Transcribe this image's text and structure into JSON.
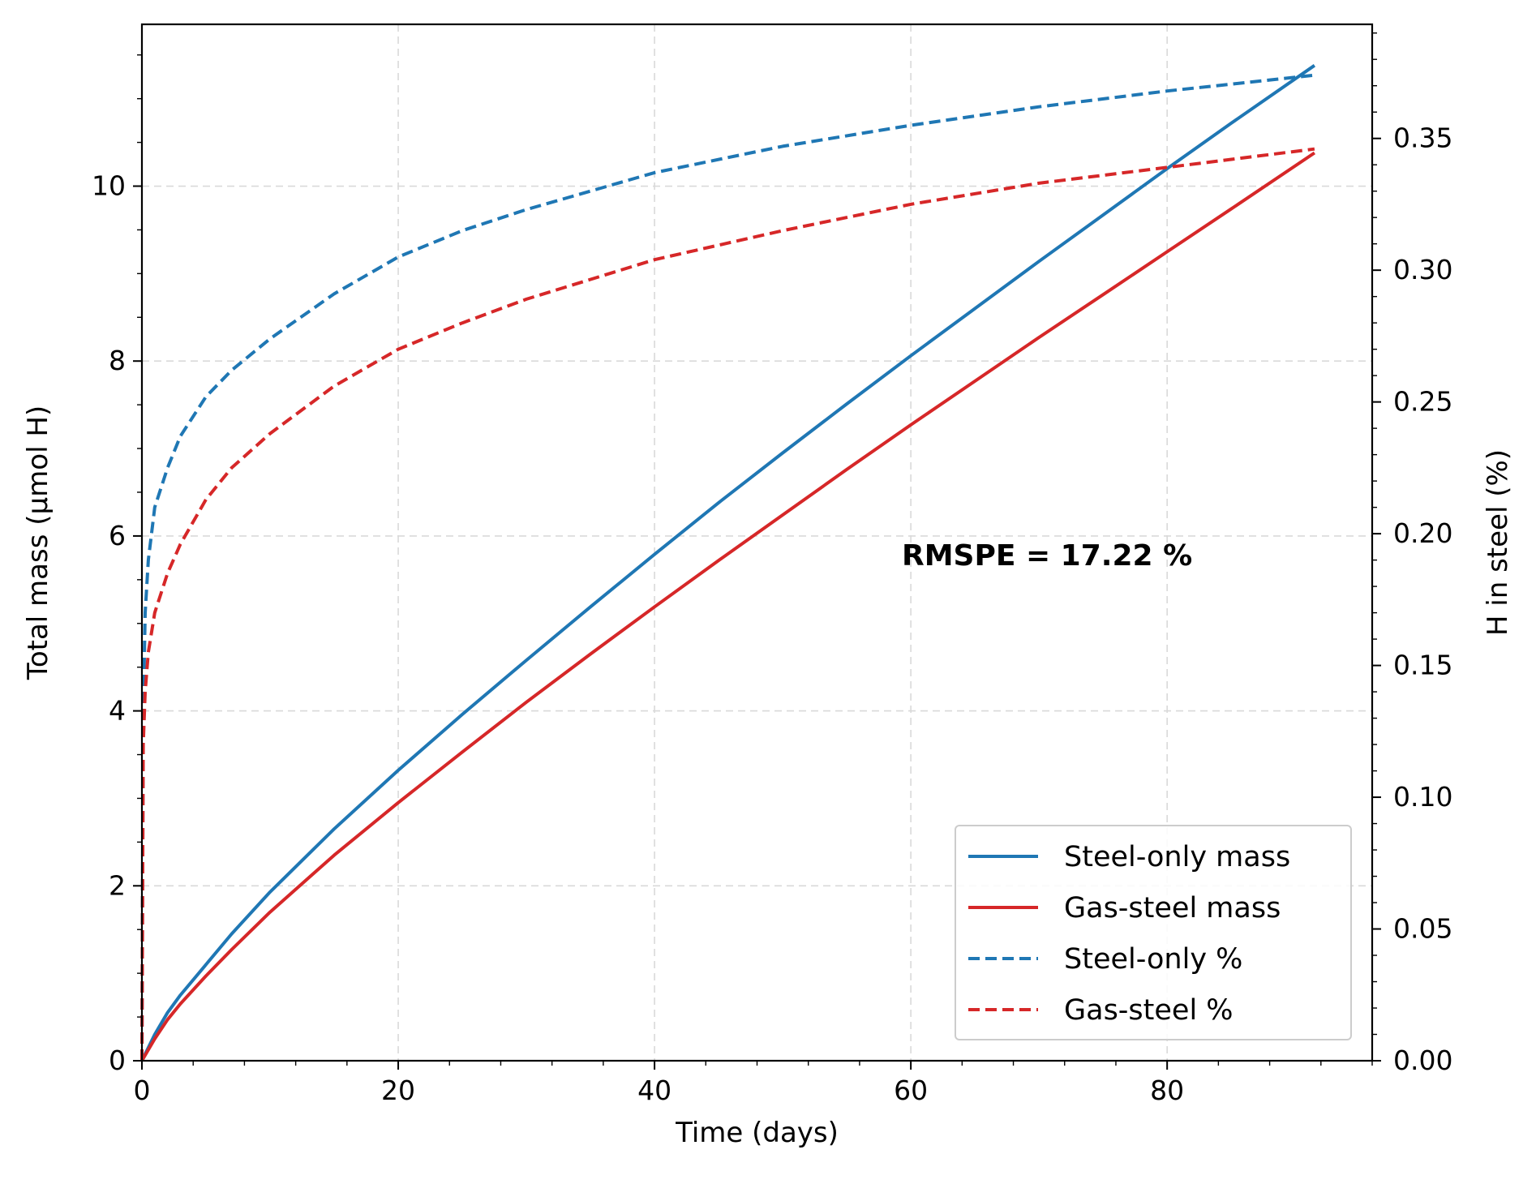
{
  "chart_data": {
    "type": "line",
    "xlabel": "Time (days)",
    "ylabel_left": "Total mass (μmol H)",
    "ylabel_right": "H in steel (%)",
    "xlim": [
      0,
      96
    ],
    "ylim_left": [
      0,
      11.85
    ],
    "ylim_right": [
      0,
      0.3933
    ],
    "x_ticks": [
      0,
      20,
      40,
      60,
      80
    ],
    "x_tick_labels": [
      "0",
      "20",
      "40",
      "60",
      "80"
    ],
    "y_left_ticks": [
      0,
      2,
      4,
      6,
      8,
      10
    ],
    "y_left_tick_labels": [
      "0",
      "2",
      "4",
      "6",
      "8",
      "10"
    ],
    "y_right_ticks": [
      0,
      0.05,
      0.1,
      0.15,
      0.2,
      0.25,
      0.3,
      0.35
    ],
    "y_right_tick_labels": [
      "0.00",
      "0.05",
      "0.10",
      "0.15",
      "0.20",
      "0.25",
      "0.30",
      "0.35"
    ],
    "grid": true,
    "legend_position": "lower-right",
    "annotation": "RMSPE = 17.22 %",
    "colors": {
      "blue": "#1f77b4",
      "red": "#d62728"
    },
    "series": [
      {
        "name": "Steel-only mass",
        "axis": "left",
        "style": "solid",
        "color": "#1f77b4",
        "x": [
          0,
          1,
          2,
          3,
          5,
          7,
          10,
          15,
          20,
          25,
          30,
          35,
          40,
          45,
          50,
          55,
          60,
          65,
          70,
          75,
          80,
          85,
          91.5
        ],
        "y": [
          0,
          0.3,
          0.55,
          0.75,
          1.1,
          1.45,
          1.93,
          2.65,
          3.32,
          3.96,
          4.58,
          5.19,
          5.79,
          6.38,
          6.95,
          7.51,
          8.06,
          8.6,
          9.14,
          9.67,
          10.2,
          10.72,
          11.38
        ]
      },
      {
        "name": "Gas-steel mass",
        "axis": "left",
        "style": "solid",
        "color": "#d62728",
        "x": [
          0,
          1,
          2,
          3,
          5,
          7,
          10,
          15,
          20,
          25,
          30,
          35,
          40,
          45,
          50,
          55,
          60,
          65,
          70,
          75,
          80,
          85,
          91.5
        ],
        "y": [
          0,
          0.25,
          0.47,
          0.65,
          0.97,
          1.27,
          1.7,
          2.35,
          2.95,
          3.53,
          4.1,
          4.65,
          5.19,
          5.72,
          6.24,
          6.76,
          7.27,
          7.77,
          8.27,
          8.76,
          9.25,
          9.74,
          10.38
        ]
      },
      {
        "name": "Steel-only %",
        "axis": "right",
        "style": "dashed",
        "color": "#1f77b4",
        "x": [
          0,
          0.1,
          0.25,
          0.5,
          1,
          2,
          3,
          5,
          7,
          10,
          15,
          20,
          25,
          30,
          40,
          50,
          60,
          70,
          80,
          91.5
        ],
        "y": [
          0,
          0.13,
          0.17,
          0.19,
          0.21,
          0.225,
          0.237,
          0.252,
          0.262,
          0.274,
          0.291,
          0.305,
          0.315,
          0.323,
          0.337,
          0.347,
          0.355,
          0.362,
          0.368,
          0.374
        ]
      },
      {
        "name": "Gas-steel %",
        "axis": "right",
        "style": "dashed",
        "color": "#d62728",
        "x": [
          0,
          0.1,
          0.25,
          0.5,
          1,
          2,
          3,
          5,
          7,
          10,
          15,
          20,
          25,
          30,
          40,
          50,
          60,
          70,
          80,
          91.5
        ],
        "y": [
          0,
          0.12,
          0.14,
          0.155,
          0.17,
          0.185,
          0.196,
          0.213,
          0.225,
          0.238,
          0.256,
          0.27,
          0.28,
          0.289,
          0.304,
          0.315,
          0.325,
          0.333,
          0.339,
          0.346
        ]
      }
    ]
  }
}
